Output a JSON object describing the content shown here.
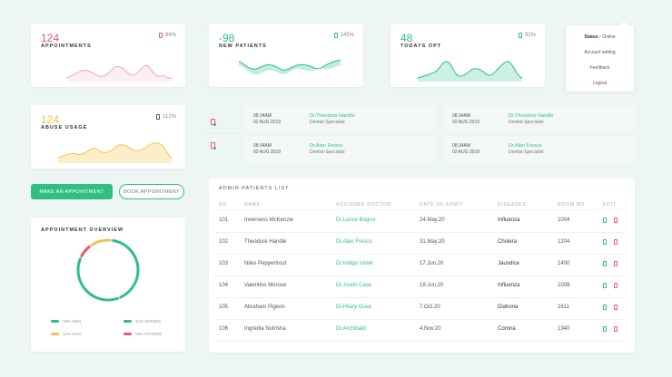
{
  "colors": {
    "green": "#2fbf84",
    "red": "#e65a6e",
    "yellow": "#f0c454",
    "pink": "#e88a9a"
  },
  "stats": [
    {
      "value": "124",
      "label": "APPOINTMENTS",
      "pct": "86%",
      "color": "#e65a6e",
      "icon": "file-icon"
    },
    {
      "value": "-98",
      "label": "NEW PATIENTS",
      "pct": "145%",
      "color": "#2fbf84",
      "icon": "file-icon"
    },
    {
      "value": "48",
      "label": "TODAYS OPT",
      "pct": "91%",
      "color": "#2fbf84",
      "icon": "file-icon"
    },
    {
      "value": "124",
      "label": "ABUSE USAGE",
      "pct": "112%",
      "color": "#f0c454",
      "icon": "file-icon"
    }
  ],
  "menu": {
    "status_label": "Status",
    "status_value": "Online",
    "items": [
      "Account setting",
      "Feedback",
      "Logout"
    ]
  },
  "appointments": [
    {
      "time": "08:34AM",
      "date": "02 AUG 2019",
      "doctor": "Dr.Theodore Handle",
      "role": "Dentist-Specialist"
    },
    {
      "time": "08:34AM",
      "date": "02 AUG 2019",
      "doctor": "Dr.Theodore Handle",
      "role": "Dentist-Specialist"
    },
    {
      "time": "08:34AM",
      "date": "02 AUG 2019",
      "doctor": "Dr.Alan Fresco",
      "role": "Dentist-Specialist"
    },
    {
      "time": "08:34AM",
      "date": "02 AUG 2019",
      "doctor": "Dr.Alan Fresco",
      "role": "Dentist-Specialist"
    }
  ],
  "buttons": {
    "make": "MAKE AN APPOINTMENT",
    "book": "BOOK APPOINTMENT"
  },
  "overview": {
    "title": "APPOINTMENT OVERVIEW",
    "legend": [
      {
        "label": "38% MEN",
        "color": "#2fbf84",
        "pct": 38
      },
      {
        "label": "42% WOMEN",
        "color": "#2fbf84",
        "pct": 42
      },
      {
        "label": "12% KIDS",
        "color": "#f0c454",
        "pct": 12
      },
      {
        "label": "08% OTHERS",
        "color": "#e65a6e",
        "pct": 8
      }
    ]
  },
  "table": {
    "title": "ADMIN PATIENTS LIST",
    "headers": [
      "NO",
      "NAME",
      "ASSIGNED DOCTOR",
      "DATE OF ADMIT",
      "DISEASES",
      "ROOM NO",
      "EDIT"
    ],
    "rows": [
      [
        "101",
        "Inverness McKenzie",
        "Dr.Lance Bogrol",
        "24.May.20",
        "Influenza",
        "1004"
      ],
      [
        "102",
        "Theodore Handle",
        "Dr.Alan Fresco",
        "31.May.20",
        "Cholera",
        "1204"
      ],
      [
        "103",
        "Niles Peppertrout",
        "Dr.Indigo Violet",
        "17.Jun.20",
        "Jaundice",
        "1400"
      ],
      [
        "104",
        "Valentino Morose",
        "Dr.Justin Case",
        "19.Jun.20",
        "Influenza",
        "1008"
      ],
      [
        "105",
        "Abraham Pigeon",
        "Dr.Hilary Ouse",
        "7.Oct.20",
        "Diahoria",
        "1611"
      ],
      [
        "106",
        "Ingredia Nutrisha",
        "Dr.Archibald",
        "4.Nov.20",
        "Corona",
        "1340"
      ]
    ]
  }
}
